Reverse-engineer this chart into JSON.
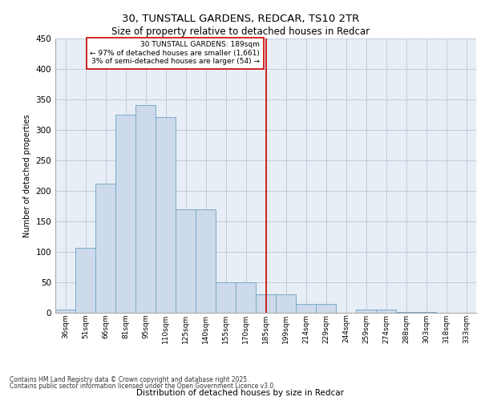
{
  "title_line1": "30, TUNSTALL GARDENS, REDCAR, TS10 2TR",
  "title_line2": "Size of property relative to detached houses in Redcar",
  "xlabel": "Distribution of detached houses by size in Redcar",
  "ylabel": "Number of detached properties",
  "categories": [
    "36sqm",
    "51sqm",
    "66sqm",
    "81sqm",
    "95sqm",
    "110sqm",
    "125sqm",
    "140sqm",
    "155sqm",
    "170sqm",
    "185sqm",
    "199sqm",
    "214sqm",
    "229sqm",
    "244sqm",
    "259sqm",
    "274sqm",
    "288sqm",
    "303sqm",
    "318sqm",
    "333sqm"
  ],
  "values": [
    5,
    107,
    211,
    325,
    340,
    320,
    170,
    170,
    50,
    50,
    30,
    30,
    15,
    15,
    0,
    5,
    5,
    1,
    1,
    0,
    0
  ],
  "bar_color": "#ccdaeb",
  "bar_edge_color": "#7aaac8",
  "vline_x_index": 10,
  "vline_color": "#cc0000",
  "annotation_text": "30 TUNSTALL GARDENS: 189sqm\n← 97% of detached houses are smaller (1,661)\n3% of semi-detached houses are larger (54) →",
  "annotation_box_color": "#ffffff",
  "annotation_box_edge": "#cc0000",
  "ylim": [
    0,
    450
  ],
  "yticks": [
    0,
    50,
    100,
    150,
    200,
    250,
    300,
    350,
    400,
    450
  ],
  "grid_color": "#c0ccd8",
  "bg_color": "#e8eef6",
  "footer_line1": "Contains HM Land Registry data © Crown copyright and database right 2025.",
  "footer_line2": "Contains public sector information licensed under the Open Government Licence v3.0."
}
